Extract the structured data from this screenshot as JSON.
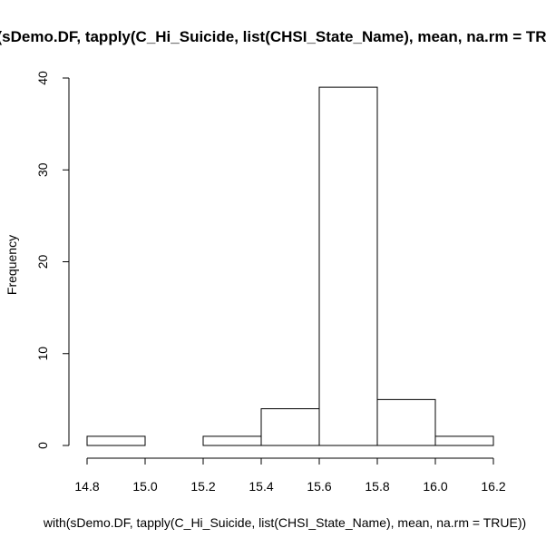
{
  "chart_data": {
    "type": "bar",
    "title": "with(sDemo.DF, tapply(C_Hi_Suicide, list(CHSI_State_Name), mean, na.rm = TRUE))",
    "xlabel": "with(sDemo.DF, tapply(C_Hi_Suicide, list(CHSI_State_Name), mean, na.rm = TRUE))",
    "ylabel": "Frequency",
    "bins": [
      {
        "start": 14.8,
        "end": 15.0,
        "count": 1
      },
      {
        "start": 15.0,
        "end": 15.2,
        "count": 0
      },
      {
        "start": 15.2,
        "end": 15.4,
        "count": 1
      },
      {
        "start": 15.4,
        "end": 15.6,
        "count": 4
      },
      {
        "start": 15.6,
        "end": 15.8,
        "count": 39
      },
      {
        "start": 15.8,
        "end": 16.0,
        "count": 5
      },
      {
        "start": 16.0,
        "end": 16.2,
        "count": 1
      }
    ],
    "xlim": [
      14.8,
      16.2
    ],
    "ylim": [
      0,
      40
    ],
    "x_ticks": [
      "14.8",
      "15.0",
      "15.2",
      "15.4",
      "15.6",
      "15.8",
      "16.0",
      "16.2"
    ],
    "y_ticks": [
      "0",
      "10",
      "20",
      "30",
      "40"
    ],
    "grid": false,
    "legend": "none"
  }
}
